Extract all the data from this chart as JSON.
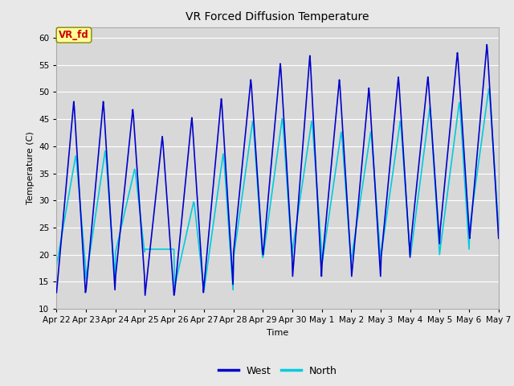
{
  "title": "VR Forced Diffusion Temperature",
  "xlabel": "Time",
  "ylabel": "Temperature (C)",
  "ylim": [
    10,
    62
  ],
  "yticks": [
    10,
    15,
    20,
    25,
    30,
    35,
    40,
    45,
    50,
    55,
    60
  ],
  "west_color": "#0000CC",
  "north_color": "#00CCDD",
  "fig_facecolor": "#E8E8E8",
  "plot_bg_color": "#D8D8D8",
  "annotation_text": "VR_fd",
  "annotation_bg": "#FFFF99",
  "annotation_fg": "#CC0000",
  "annotation_border": "#888800",
  "legend_west": "West",
  "legend_north": "North",
  "xtick_labels": [
    "Apr 22",
    "Apr 23",
    "Apr 24",
    "Apr 25",
    "Apr 26",
    "Apr 27",
    "Apr 28",
    "Apr 29",
    "Apr 30",
    "May 1",
    "May 2",
    "May 3",
    "May 4",
    "May 5",
    "May 6",
    "May 7"
  ],
  "n_days": 15,
  "west_daily_peaks": [
    48.5,
    48.5,
    47.0,
    42.0,
    45.5,
    49.0,
    52.5,
    55.5,
    57.0,
    52.5,
    51.0,
    53.0,
    53.0,
    57.5,
    59.0
  ],
  "west_daily_mins": [
    13.0,
    13.5,
    16.0,
    12.5,
    13.0,
    14.5,
    20.5,
    20.0,
    16.0,
    18.5,
    16.0,
    19.5,
    22.0,
    24.5,
    23.0
  ],
  "north_daily_peaks": [
    38.5,
    39.5,
    36.0,
    21.0,
    30.0,
    39.0,
    45.0,
    45.5,
    45.0,
    43.0,
    43.0,
    45.0,
    47.5,
    48.5,
    51.0
  ],
  "north_daily_mins": [
    18.0,
    15.5,
    20.5,
    21.0,
    14.0,
    13.5,
    19.5,
    19.5,
    21.0,
    18.5,
    19.5,
    20.0,
    20.0,
    21.0,
    25.0
  ],
  "pts_per_day": 48,
  "line_width": 1.2,
  "title_fontsize": 10,
  "axis_fontsize": 8,
  "tick_fontsize": 7.5,
  "legend_fontsize": 9
}
